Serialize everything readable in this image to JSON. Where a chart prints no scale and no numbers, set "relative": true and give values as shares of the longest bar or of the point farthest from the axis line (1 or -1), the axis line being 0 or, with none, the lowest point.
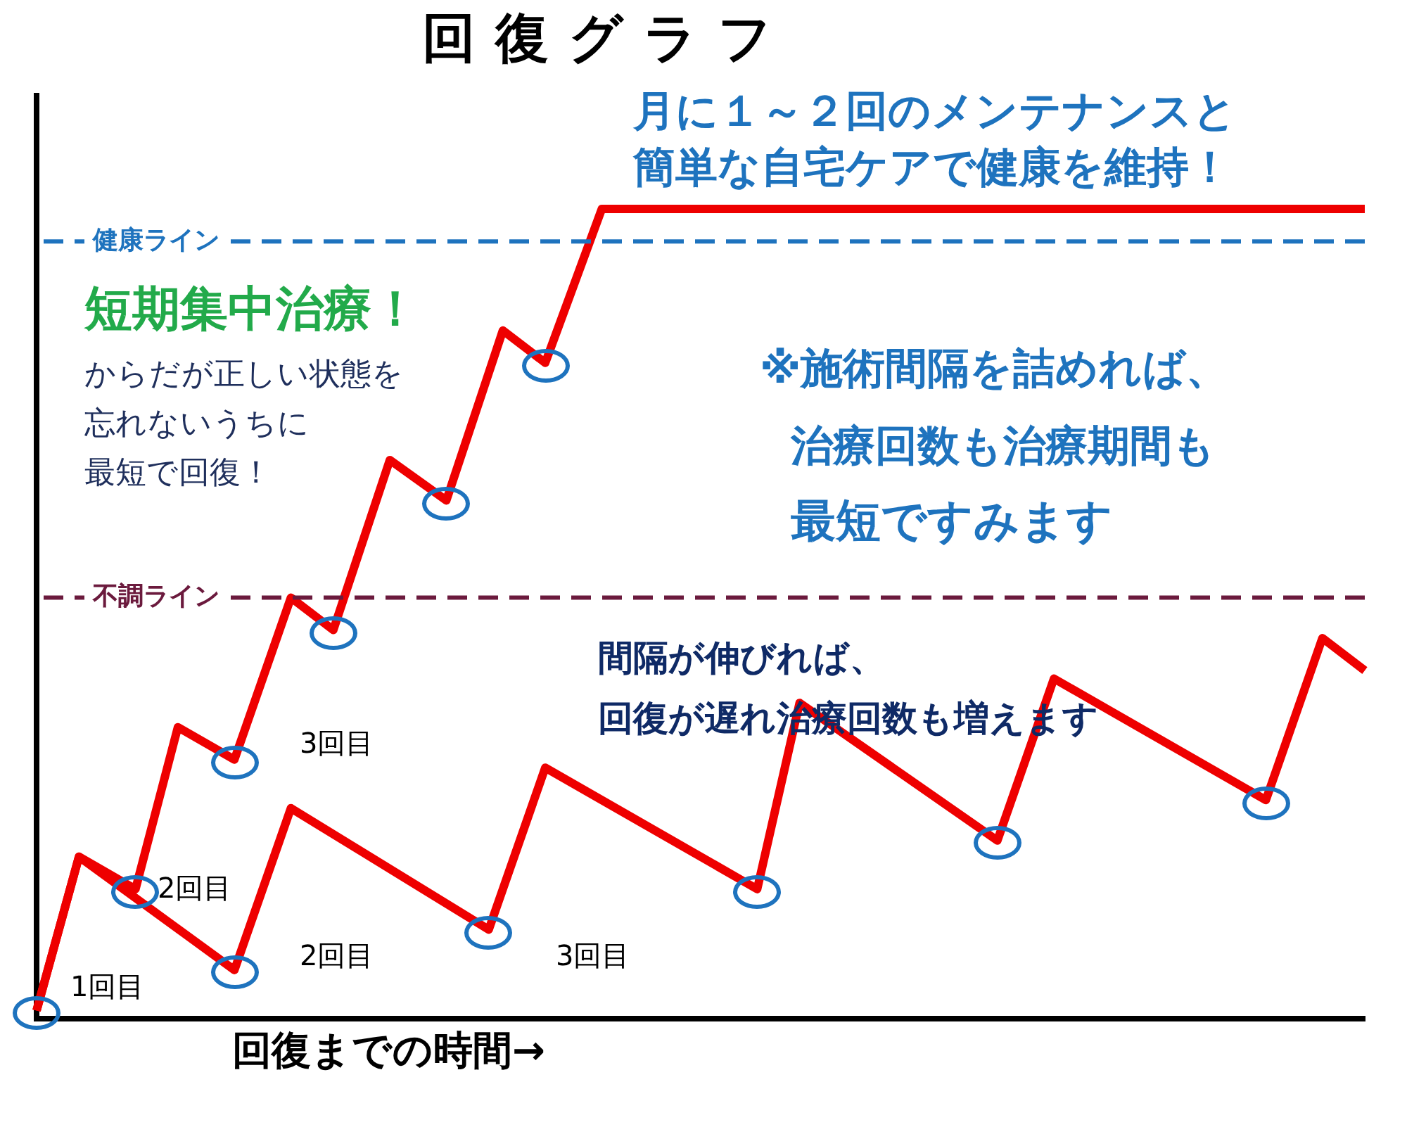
{
  "chart_data": {
    "type": "line",
    "title": "回復グラフ",
    "xlabel": "回復までの時間→",
    "relative": true,
    "legend": false,
    "grid": false,
    "line_style": "solid",
    "categories": [
      null,
      null,
      null,
      null,
      null,
      null,
      null,
      null,
      null,
      null,
      null,
      null,
      null,
      null,
      null,
      null,
      null,
      null,
      null,
      null,
      null,
      null,
      null,
      null,
      null,
      null,
      null,
      null,
      null,
      null,
      null,
      null,
      null,
      null,
      null,
      null,
      null,
      null,
      null,
      null,
      null,
      null,
      null,
      null,
      null,
      null,
      null,
      null,
      null,
      null,
      null,
      null,
      null,
      null,
      null,
      null,
      null,
      null,
      null,
      null,
      null,
      null,
      null,
      null,
      null,
      null,
      null,
      null,
      null,
      null,
      null,
      null,
      null,
      null,
      null,
      null,
      null,
      null,
      null,
      null,
      null,
      null,
      null,
      null,
      null,
      null,
      null,
      null,
      null,
      null,
      null,
      null,
      null,
      null,
      null
    ],
    "series": [
      {
        "color": "#ee0000",
        "values": [
          0.01,
          null,
          null,
          0.2,
          null,
          null,
          null,
          0.16,
          null,
          null,
          0.36,
          null,
          null,
          null,
          0.32,
          null,
          null,
          null,
          0.52,
          null,
          null,
          0.48,
          null,
          null,
          null,
          0.69,
          null,
          null,
          null,
          0.64,
          null,
          null,
          null,
          0.85,
          null,
          null,
          0.81,
          null,
          null,
          null,
          1,
          null,
          null,
          null,
          null,
          null,
          null,
          null,
          null,
          null,
          null,
          null,
          null,
          null,
          null,
          null,
          null,
          null,
          null,
          null,
          null,
          null,
          null,
          null,
          null,
          null,
          null,
          null,
          null,
          null,
          null,
          null,
          null,
          null,
          null,
          null,
          null,
          null,
          null,
          null,
          null,
          null,
          null,
          null,
          null,
          null,
          null,
          null,
          null,
          null,
          null,
          null,
          null,
          null,
          1
        ]
      },
      {
        "color": "#ee0000",
        "values": [
          0.01,
          null,
          null,
          0.2,
          null,
          null,
          null,
          null,
          null,
          null,
          null,
          null,
          null,
          null,
          0.06,
          null,
          null,
          null,
          0.26,
          null,
          null,
          null,
          null,
          null,
          null,
          null,
          null,
          null,
          null,
          null,
          null,
          null,
          0.11,
          null,
          null,
          null,
          0.31,
          null,
          null,
          null,
          null,
          null,
          null,
          null,
          null,
          null,
          null,
          null,
          null,
          null,
          null,
          0.16,
          null,
          null,
          0.39,
          null,
          null,
          null,
          null,
          null,
          null,
          null,
          null,
          null,
          null,
          null,
          null,
          null,
          0.22,
          null,
          null,
          null,
          0.42,
          null,
          null,
          null,
          null,
          null,
          null,
          null,
          null,
          null,
          null,
          null,
          null,
          null,
          null,
          0.27,
          null,
          null,
          null,
          0.47,
          null,
          null,
          0.43
        ]
      }
    ],
    "ref_lines": [
      {
        "axis": "y",
        "value": 0.96,
        "label": "健康ライン",
        "color": "#1e73be",
        "line_style": "dashed"
      },
      {
        "axis": "y",
        "value": 0.52,
        "label": "不調ライン",
        "color": "#6b1a3d",
        "line_style": "dashed"
      }
    ],
    "annotations": [
      "月に１～２回のメンテナンスと",
      "簡単な自宅ケアで健康を維持！",
      "短期集中治療！",
      "からだが正しい状態を",
      "忘れないうちに",
      "最短で回復！",
      "※施術間隔を詰めれば、",
      "治療回数も治療期間も",
      "最短ですみます",
      "間隔が伸びれば、",
      "回復が遅れ治療回数も増えます",
      "1回目",
      "2回目",
      "3回目",
      "2回目",
      "3回目"
    ]
  }
}
